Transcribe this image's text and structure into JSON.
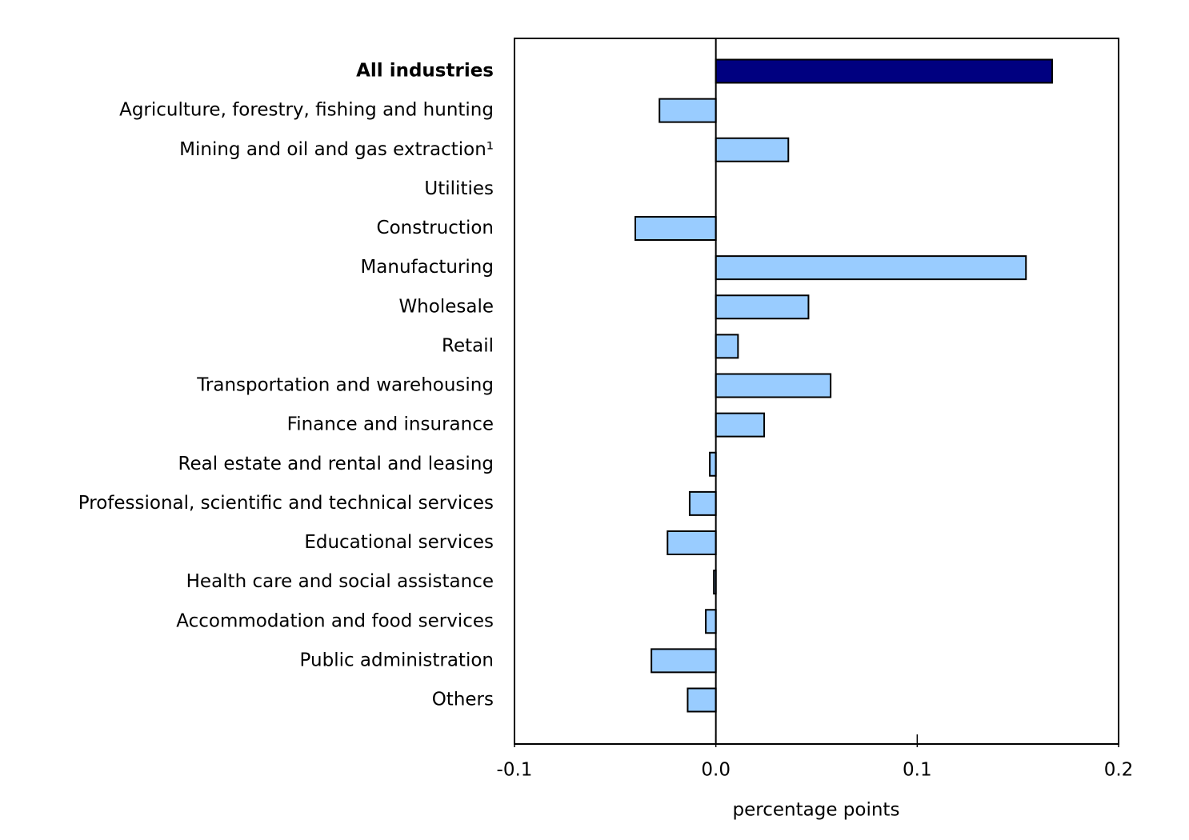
{
  "chart_data": {
    "type": "hbar",
    "categories": [
      "All industries",
      "Agriculture, forestry, fishing and hunting",
      "Mining and oil and gas extraction¹",
      "Utilities",
      "Construction",
      "Manufacturing",
      "Wholesale",
      "Retail",
      "Transportation and warehousing",
      "Finance and insurance",
      "Real estate and rental and leasing",
      "Professional, scientific and technical services",
      "Educational services",
      "Health care and social assistance",
      "Accommodation and food services",
      "Public administration",
      "Others"
    ],
    "values": [
      0.167,
      -0.028,
      0.036,
      0,
      -0.04,
      0.154,
      0.046,
      0.011,
      0.057,
      0.024,
      -0.003,
      -0.013,
      -0.024,
      -0.001,
      -0.005,
      -0.032,
      -0.014
    ],
    "colors": [
      "#000080",
      "#99ccff",
      "#99ccff",
      "#99ccff",
      "#99ccff",
      "#99ccff",
      "#99ccff",
      "#99ccff",
      "#99ccff",
      "#99ccff",
      "#99ccff",
      "#99ccff",
      "#99ccff",
      "#99ccff",
      "#99ccff",
      "#99ccff",
      "#99ccff"
    ],
    "xlim": [
      -0.1,
      0.2
    ],
    "xticks": [
      -0.1,
      {
        "value": 0,
        "label": "0.0"
      },
      0.1,
      0.2
    ],
    "xlabel": "percentage points"
  }
}
